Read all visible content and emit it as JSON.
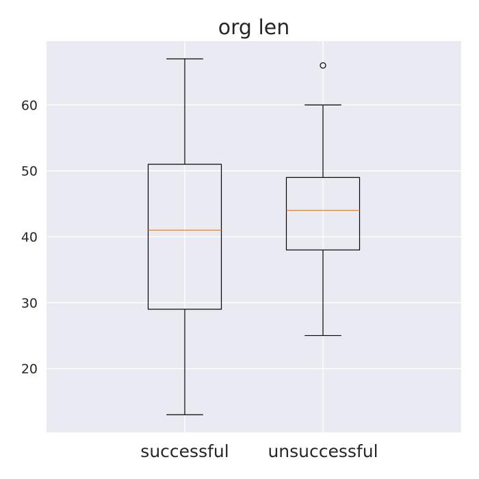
{
  "chart_data": {
    "type": "box",
    "title": "org len",
    "xlabel": "",
    "ylabel": "",
    "categories": [
      "successful",
      "unsuccessful"
    ],
    "boxes": [
      {
        "name": "successful",
        "whisker_low": 13,
        "q1": 29,
        "median": 41,
        "q3": 51,
        "whisker_high": 67,
        "outliers": []
      },
      {
        "name": "unsuccessful",
        "whisker_low": 25,
        "q1": 38,
        "median": 44,
        "q3": 49,
        "whisker_high": 60,
        "outliers": [
          66
        ]
      }
    ],
    "ylim": [
      10.3,
      69.7
    ],
    "yticks": [
      20,
      30,
      40,
      50,
      60
    ],
    "grid": true,
    "colors": {
      "background": "#eaeaf2",
      "grid": "#ffffff",
      "box": "#000000",
      "median": "#ff7f0e"
    }
  }
}
